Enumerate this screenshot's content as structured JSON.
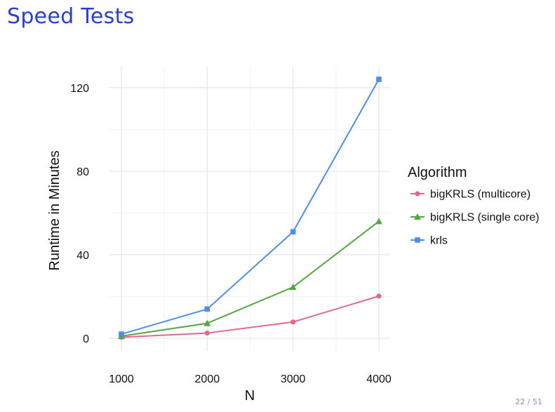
{
  "slide": {
    "title": "Speed Tests",
    "page_number": "22 / 51"
  },
  "chart_data": {
    "type": "line",
    "title": "",
    "xlabel": "N",
    "ylabel": "Runtime in Minutes",
    "x": [
      1000,
      2000,
      3000,
      4000
    ],
    "xticks": [
      "1000",
      "2000",
      "3000",
      "4000"
    ],
    "yticks": [
      "0",
      "40",
      "80",
      "120"
    ],
    "ytick_values": [
      0,
      40,
      80,
      120
    ],
    "xlim": [
      1000,
      4000
    ],
    "ylim": [
      0,
      124
    ],
    "grid": true,
    "legend": {
      "title": "Algorithm",
      "placement": "right"
    },
    "series": [
      {
        "name": "bigKRLS (multicore)",
        "values": [
          0.5,
          2.5,
          7.8,
          20.2
        ],
        "color": "#e06a86",
        "marker": "circle"
      },
      {
        "name": "bigKRLS (single core)",
        "values": [
          1.0,
          7.2,
          24.5,
          56.0
        ],
        "color": "#55a63f",
        "marker": "triangle"
      },
      {
        "name": "krls",
        "values": [
          2.0,
          14.0,
          51.0,
          124.0
        ],
        "color": "#4f8de8",
        "marker": "square"
      }
    ]
  }
}
